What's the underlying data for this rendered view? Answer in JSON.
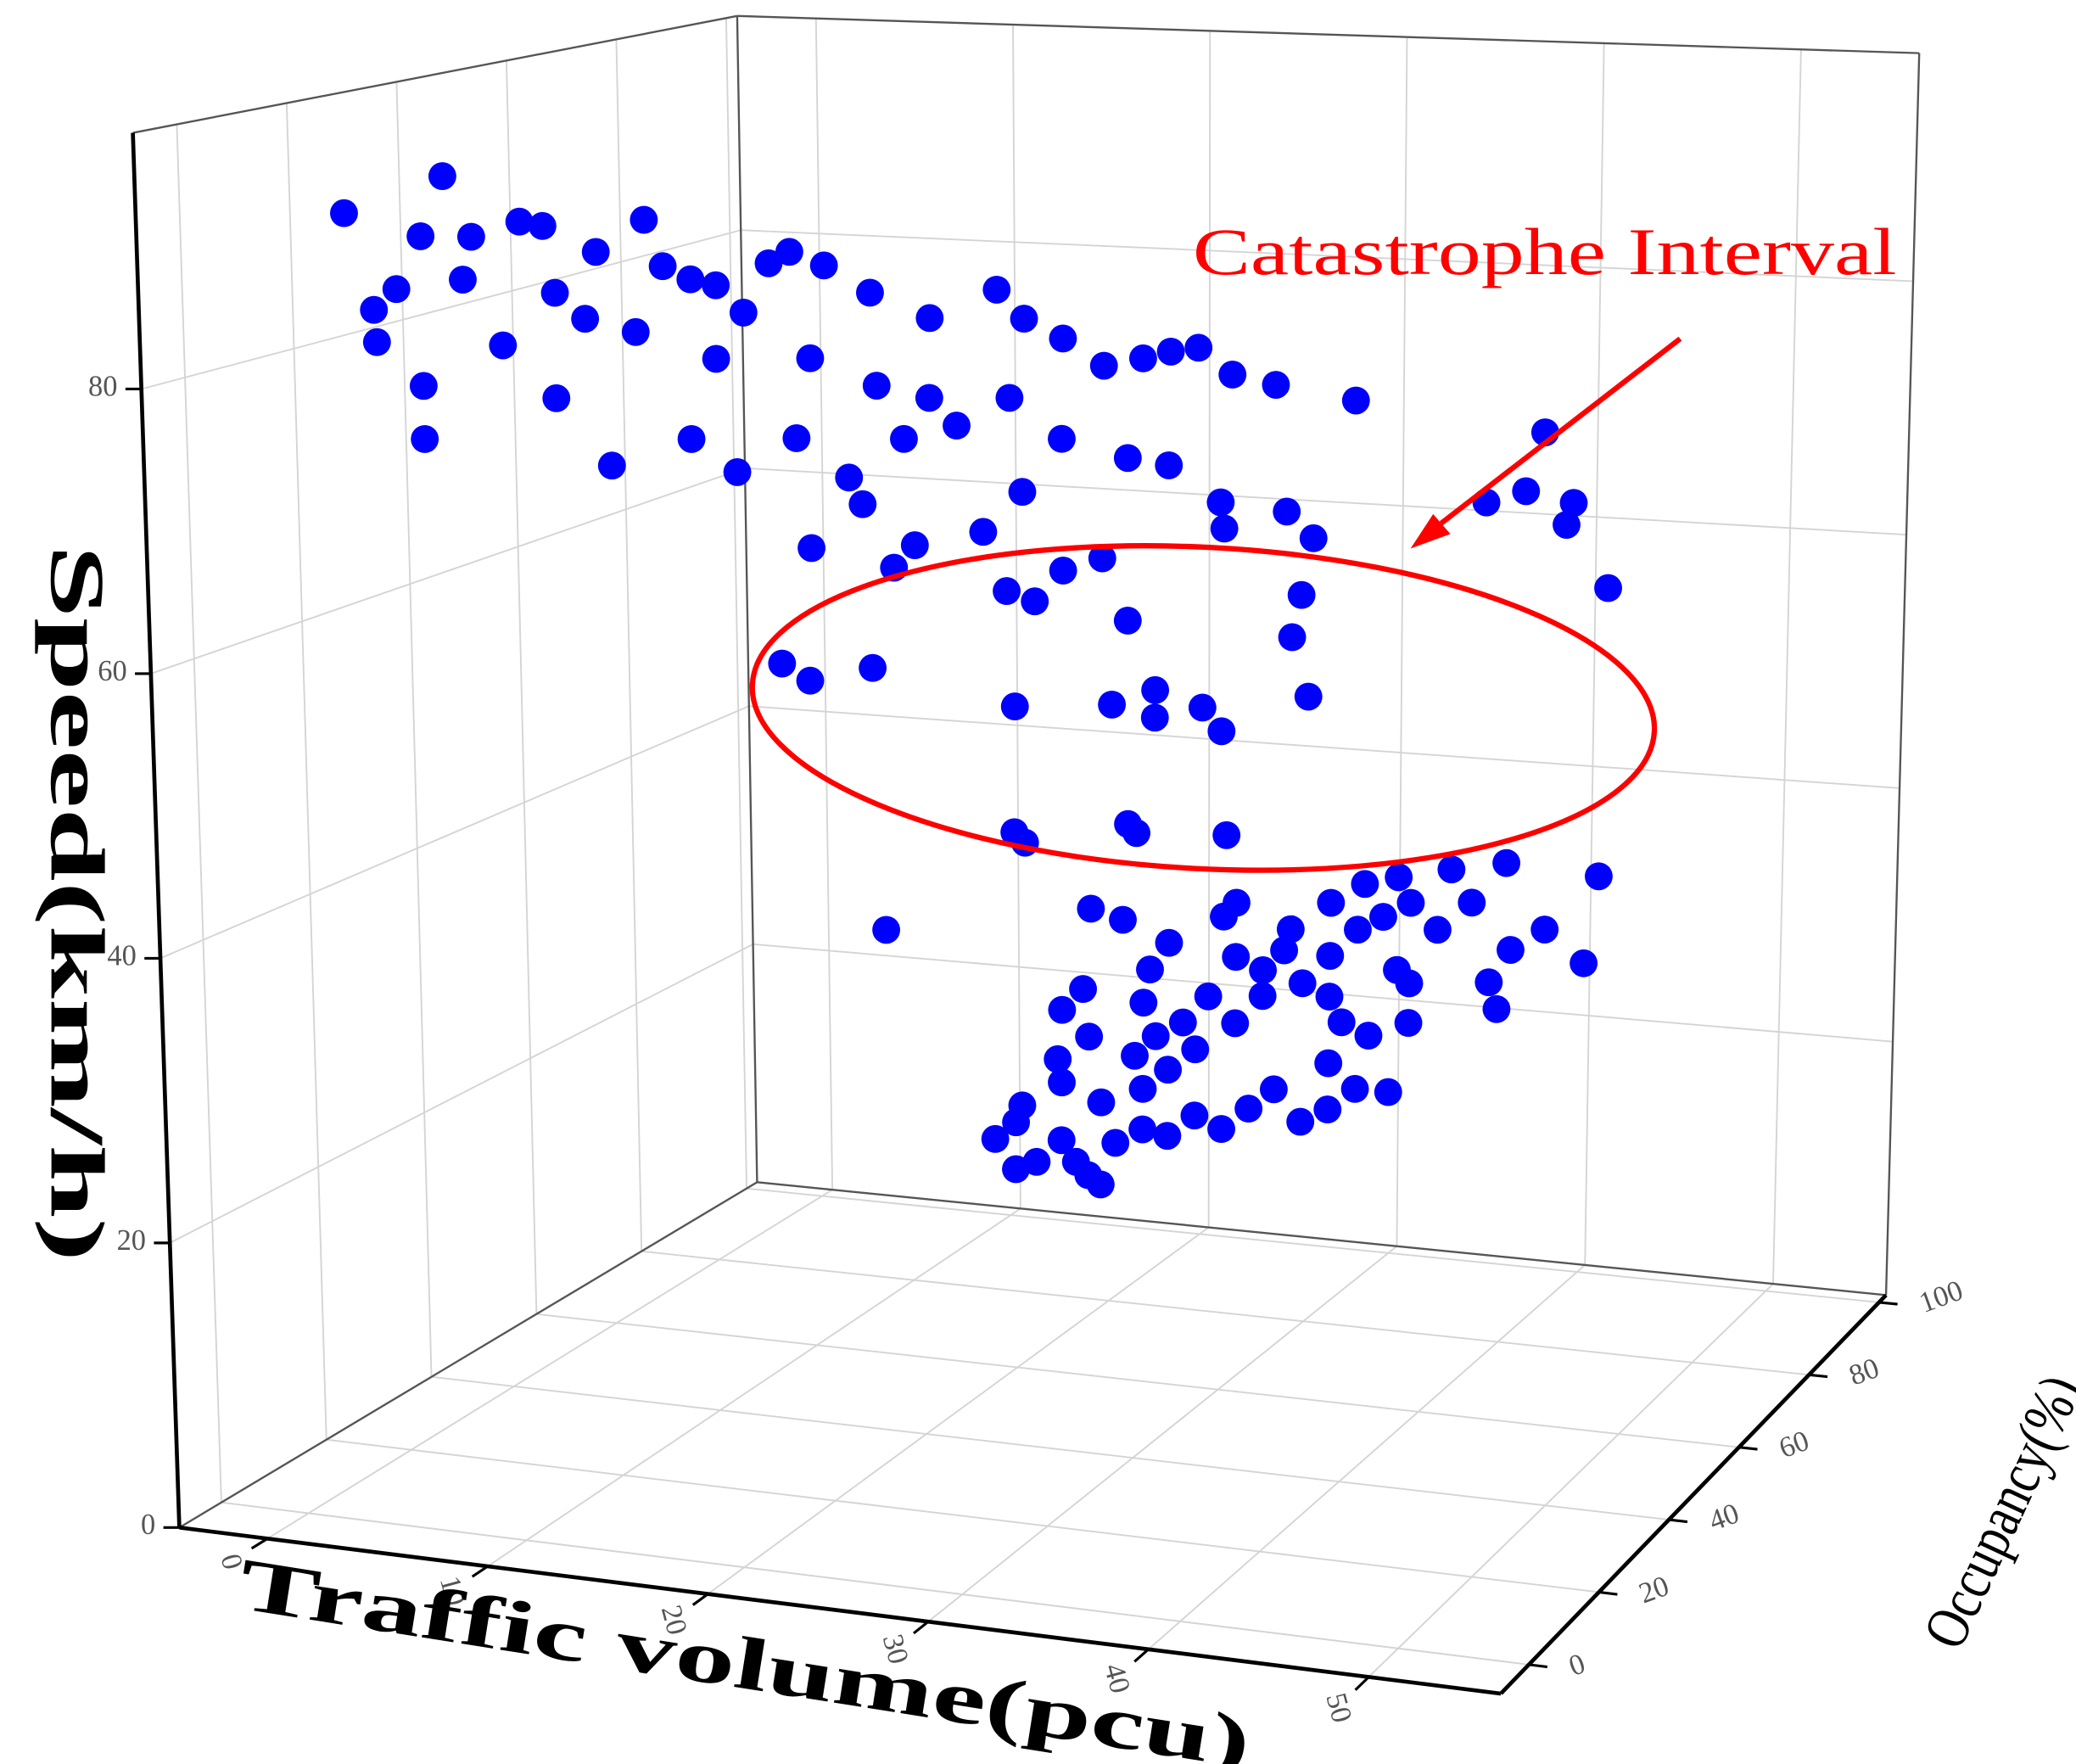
{
  "chart_data": {
    "type": "scatter3d",
    "x_label": "Traffic volume(pcu)",
    "y_label": "Occupancy(%)",
    "z_label": "Speed(km/h)",
    "annotation": "Catastrophe Interval",
    "xlim": [
      -4,
      56
    ],
    "ylim": [
      -8,
      102
    ],
    "zlim": [
      0,
      98
    ],
    "xticks": [
      0,
      10,
      20,
      30,
      40,
      50
    ],
    "yticks": [
      0,
      20,
      40,
      60,
      80,
      100
    ],
    "zticks": [
      0,
      20,
      40,
      60,
      80
    ],
    "grid": true,
    "series": [
      {
        "color": "#0000ff",
        "x": [
          1.1,
          5.4,
          2.3,
          2.4,
          4.4,
          3.3,
          4.4,
          4.4,
          6.6,
          8.7,
          9.7,
          14.1,
          10.2,
          12.0,
          14.9,
          16.1,
          17.2,
          18.4,
          19.5,
          20.4,
          21.9,
          23.9,
          26.5,
          29.4,
          30.6,
          32.3,
          34.1,
          35.8,
          37.0,
          38.2,
          39.7,
          41.6,
          45.1,
          12.6,
          7.9,
          10.2,
          16.1,
          18.1,
          20.7,
          23.0,
          25.4,
          27.7,
          30.0,
          32.3,
          35.2,
          37.0,
          39.3,
          42.2,
          43.4,
          23.6,
          25.9,
          28.9,
          30.6,
          26.5,
          21.3,
          13.7,
          6.2,
          11.5,
          17.2,
          24.2,
          46.6,
          48.4,
          50.6,
          49.2,
          50.3,
          52.3,
          14.2,
          15.5,
          18.4,
          25.0,
          29.5,
          31.5,
          31.5,
          33.7,
          34.6,
          38.6,
          37.8,
          38.2,
          30.2,
          24.6,
          25.9,
          15.6,
          19.4,
          27.2,
          29.0,
          34.6,
          25.0,
          25.5,
          30.3,
          30.7,
          34.9,
          19.0,
          28.6,
          30.1,
          21.8,
          22.8,
          23.1,
          22.8,
          23.8,
          25.0,
          26.3,
          26.9,
          25.7,
          27.6,
          28.9,
          30.1,
          31.4,
          32.7,
          34.0,
          35.2,
          36.5,
          37.8,
          39.1,
          40.7,
          28.9,
          30.1,
          31.4,
          33.3,
          34.6,
          36.5,
          37.8,
          39.1,
          40.3,
          41.6,
          42.9,
          41.0,
          41.6,
          39.7,
          37.8,
          35.9,
          34.6,
          33.3,
          32.0,
          30.8,
          29.5,
          28.5,
          26.9,
          25.0,
          24.8,
          26.3,
          26.0,
          25.0,
          29.2,
          28.9,
          30.1,
          32.7,
          33.3,
          35.6,
          37.8,
          39.4,
          41.0,
          43.5,
          44.5,
          46.1,
          48.0,
          49.9,
          46.4,
          45.4,
          45.8,
          50.5,
          37.8,
          38.4,
          41.6
        ],
        "y": [
          8.5,
          8.5,
          8.5,
          8.5,
          8.5,
          8.5,
          8.5,
          8.5,
          8.5,
          8.5,
          8.5,
          8.5,
          8.5,
          8.5,
          8.5,
          8.5,
          8.5,
          8.5,
          8.5,
          8.5,
          8.5,
          8.5,
          8.5,
          8.5,
          8.5,
          8.5,
          8.5,
          8.5,
          8.5,
          8.5,
          8.5,
          8.5,
          8.5,
          8.5,
          8.5,
          8.5,
          8.5,
          8.5,
          8.5,
          8.5,
          8.5,
          8.5,
          8.5,
          8.5,
          8.5,
          8.5,
          8.5,
          8.5,
          8.5,
          8.5,
          8.5,
          8.5,
          8.5,
          8.5,
          8.5,
          8.5,
          8.5,
          8.5,
          8.5,
          8.5,
          36,
          36,
          36,
          36,
          36,
          36,
          36,
          36,
          36,
          36,
          36,
          36,
          36,
          36,
          36,
          36,
          36,
          36,
          36,
          36,
          36,
          36,
          36,
          36,
          36,
          36,
          36,
          36,
          36,
          36,
          36,
          36,
          36,
          36,
          47,
          47,
          47,
          47,
          47,
          47,
          47,
          47,
          47,
          47,
          47,
          47,
          47,
          47,
          47,
          47,
          47,
          47,
          47,
          47,
          47,
          47,
          47,
          47,
          47,
          47,
          47,
          47,
          47,
          47,
          47,
          47,
          47,
          47,
          47,
          47,
          47,
          47,
          47,
          47,
          47,
          47,
          47,
          47,
          47,
          47,
          47,
          47,
          47,
          47,
          47,
          47,
          47,
          47,
          47,
          47,
          47,
          47,
          47,
          47,
          47,
          47,
          47,
          47,
          47,
          47,
          47,
          47,
          47
        ],
        "z": [
          91.5,
          94.6,
          84.7,
          82.4,
          90.2,
          86.3,
          75.7,
          79.5,
          90.4,
          91.7,
          91.5,
          92.4,
          86.8,
          89.9,
          89.2,
          88.4,
          88.1,
          86.3,
          89.9,
          90.8,
          90.0,
          88.3,
          86.8,
          89.1,
          87.2,
          86.0,
          84.3,
          85.0,
          85.6,
          86.0,
          84.3,
          83.8,
          83.1,
          74.8,
          82.8,
          79.3,
          77.1,
          75.0,
          77.7,
          75.2,
          78.2,
          79.4,
          81.6,
          79.0,
          78.0,
          77.7,
          75.4,
          75.1,
          73.4,
          73.4,
          70.8,
          72.1,
          75.1,
          81.2,
          83.4,
          84.4,
          87.3,
          85.1,
          82.9,
          81.8,
          72.4,
          73.4,
          72.8,
          77.7,
          71.2,
          66.9,
          56.9,
          55.8,
          57.1,
          55.1,
          55.8,
          57.1,
          55.1,
          56.1,
          54.5,
          57.5,
          61.7,
          64.8,
          62.0,
          63.5,
          62.9,
          65.6,
          64.6,
          65.3,
          66.4,
          69.2,
          45.9,
          45.2,
          47.2,
          46.6,
          47.0,
          37.9,
          40.8,
          40.2,
          20.6,
          22.0,
          23.3,
          18.5,
          19.2,
          21.0,
          18.6,
          18.0,
          19.5,
          21.2,
          22.4,
          22.1,
          23.8,
          23.0,
          24.7,
          26.3,
          24.1,
          25.2,
          26.9,
          26.9,
          25.4,
          27.0,
          28.7,
          30.9,
          33.1,
          34.3,
          36.5,
          38.6,
          39.7,
          40.9,
          39.1,
          35.9,
          32.1,
          30.9,
          28.6,
          38.2,
          35.0,
          35.8,
          32.7,
          30.6,
          29.4,
          27.8,
          24.1,
          25.3,
          27.0,
          28.9,
          32.4,
          30.7,
          34.3,
          31.8,
          36.4,
          38.7,
          39.8,
          36.6,
          40.4,
          42.0,
          42.7,
          43.6,
          41.3,
          44.4,
          39.8,
          37.6,
          38.1,
          35.6,
          33.7,
          44.0,
          33.5,
          31.7,
          35.0
        ]
      }
    ]
  }
}
